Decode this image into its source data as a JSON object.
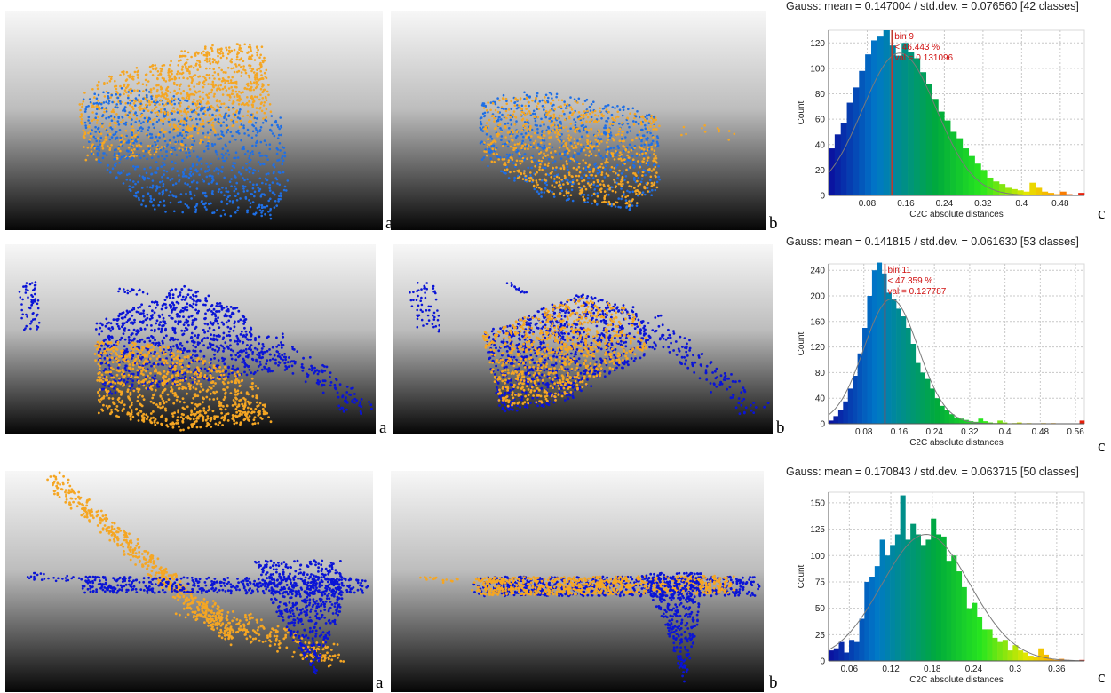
{
  "panel_labels": {
    "a": "a",
    "b": "b",
    "c": "c"
  },
  "colors": {
    "orange": "#f5a623",
    "blue_light": "#1f6fe5",
    "blue_dark": "#0a14d6"
  },
  "chart_data": [
    {
      "type": "bar",
      "title": "Gauss: mean = 0.147004 / std.dev. = 0.076560 [42 classes]",
      "xlabel": "C2C absolute distances",
      "ylabel": "Count",
      "xlim": [
        0.0,
        0.53
      ],
      "ylim": [
        0,
        130
      ],
      "xticks": [
        0.08,
        0.16,
        0.24,
        0.32,
        0.4,
        0.48
      ],
      "xtick_labels": [
        "0.08",
        "0.16",
        "0.24",
        "0.32",
        "0.4",
        "0.48"
      ],
      "yticks": [
        0,
        20,
        40,
        60,
        80,
        100,
        120
      ],
      "ytick_labels": [
        "0",
        "20",
        "40",
        "60",
        "80",
        "100",
        "120"
      ],
      "values": [
        37,
        48,
        57,
        73,
        85,
        98,
        111,
        122,
        125,
        130,
        118,
        110,
        120,
        113,
        108,
        97,
        88,
        76,
        66,
        59,
        50,
        45,
        37,
        31,
        25,
        20,
        14,
        11,
        9,
        6,
        5,
        4,
        3,
        10,
        6,
        3,
        2,
        1,
        3,
        1,
        0,
        2
      ],
      "gauss": {
        "mean": 0.147004,
        "std": 0.07656,
        "peak": 112
      },
      "marker": {
        "x": 0.131096,
        "label": "bin 9",
        "pct": "< 46.443 %",
        "val": "val = 0.131096"
      }
    },
    {
      "type": "bar",
      "title": "Gauss: mean = 0.141815 / std.dev. = 0.061630 [53 classes]",
      "xlabel": "C2C absolute distances",
      "ylabel": "Count",
      "xlim": [
        0.0,
        0.58
      ],
      "ylim": [
        0,
        250
      ],
      "xticks": [
        0.08,
        0.16,
        0.24,
        0.32,
        0.4,
        0.48,
        0.56
      ],
      "xtick_labels": [
        "0.08",
        "0.16",
        "0.24",
        "0.32",
        "0.4",
        "0.48",
        "0.56"
      ],
      "yticks": [
        0,
        40,
        80,
        120,
        160,
        200,
        240
      ],
      "ytick_labels": [
        "0",
        "40",
        "80",
        "120",
        "160",
        "200",
        "240"
      ],
      "values": [
        5,
        12,
        22,
        35,
        55,
        75,
        110,
        150,
        200,
        240,
        252,
        235,
        205,
        195,
        180,
        168,
        150,
        125,
        95,
        80,
        70,
        55,
        40,
        28,
        22,
        15,
        10,
        8,
        6,
        4,
        3,
        8,
        4,
        2,
        1,
        5,
        2,
        0,
        1,
        2,
        0,
        1,
        0,
        0,
        1,
        0,
        1,
        0,
        0,
        0,
        0,
        0,
        5
      ],
      "gauss": {
        "mean": 0.141815,
        "std": 0.06163,
        "peak": 195
      },
      "marker": {
        "x": 0.127787,
        "label": "bin 11",
        "pct": "< 47.359 %",
        "val": "val = 0.127787"
      }
    },
    {
      "type": "bar",
      "title": "Gauss: mean = 0.170843 / std.dev. = 0.063715 [50 classes]",
      "xlabel": "C2C absolute distances",
      "ylabel": "Count",
      "xlim": [
        0.03,
        0.4
      ],
      "ylim": [
        0,
        160
      ],
      "xticks": [
        0.06,
        0.12,
        0.18,
        0.24,
        0.3,
        0.36
      ],
      "xtick_labels": [
        "0.06",
        "0.12",
        "0.18",
        "0.24",
        "0.3",
        "0.36"
      ],
      "yticks": [
        0,
        25,
        50,
        75,
        100,
        125,
        150
      ],
      "ytick_labels": [
        "0",
        "25",
        "50",
        "75",
        "100",
        "125",
        "150"
      ],
      "values": [
        10,
        12,
        18,
        8,
        20,
        18,
        40,
        75,
        80,
        90,
        115,
        100,
        110,
        120,
        157,
        115,
        130,
        120,
        110,
        115,
        135,
        120,
        118,
        95,
        100,
        85,
        70,
        50,
        55,
        42,
        30,
        30,
        22,
        18,
        20,
        10,
        15,
        10,
        8,
        5,
        4,
        12,
        6,
        2,
        1,
        2,
        1,
        0,
        0,
        1
      ],
      "gauss": {
        "mean": 0.170843,
        "std": 0.063715,
        "peak": 120
      }
    }
  ]
}
